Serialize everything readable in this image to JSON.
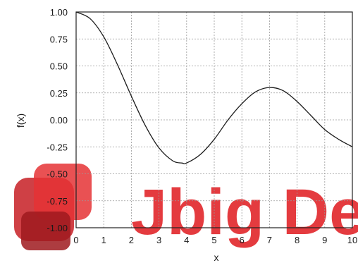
{
  "chart_data": {
    "type": "line",
    "title": "",
    "xlabel": "x",
    "ylabel": "f(x)",
    "xlim": [
      0,
      10
    ],
    "ylim": [
      -1.0,
      1.0
    ],
    "grid": true,
    "xticks": [
      "0",
      "1",
      "2",
      "3",
      "4",
      "5",
      "6",
      "7",
      "8",
      "9",
      "10"
    ],
    "yticks": [
      "1.00",
      "0.75",
      "0.50",
      "0.25",
      "0.00",
      "-0.25",
      "-0.50",
      "-0.75",
      "-1.00"
    ],
    "series": [
      {
        "x": [
          0,
          0.5,
          1,
          1.5,
          2,
          2.5,
          3,
          3.5,
          3.83,
          4,
          4.5,
          5,
          5.5,
          6,
          6.5,
          7,
          7.5,
          8,
          8.5,
          9,
          9.5,
          10
        ],
        "y": [
          1.0,
          0.94,
          0.77,
          0.51,
          0.22,
          -0.05,
          -0.26,
          -0.38,
          -0.4,
          -0.4,
          -0.32,
          -0.18,
          0.0,
          0.15,
          0.26,
          0.3,
          0.27,
          0.17,
          0.04,
          -0.09,
          -0.18,
          -0.25
        ]
      }
    ]
  },
  "watermark": {
    "text": "Jbig De",
    "color": "#e2262b"
  }
}
